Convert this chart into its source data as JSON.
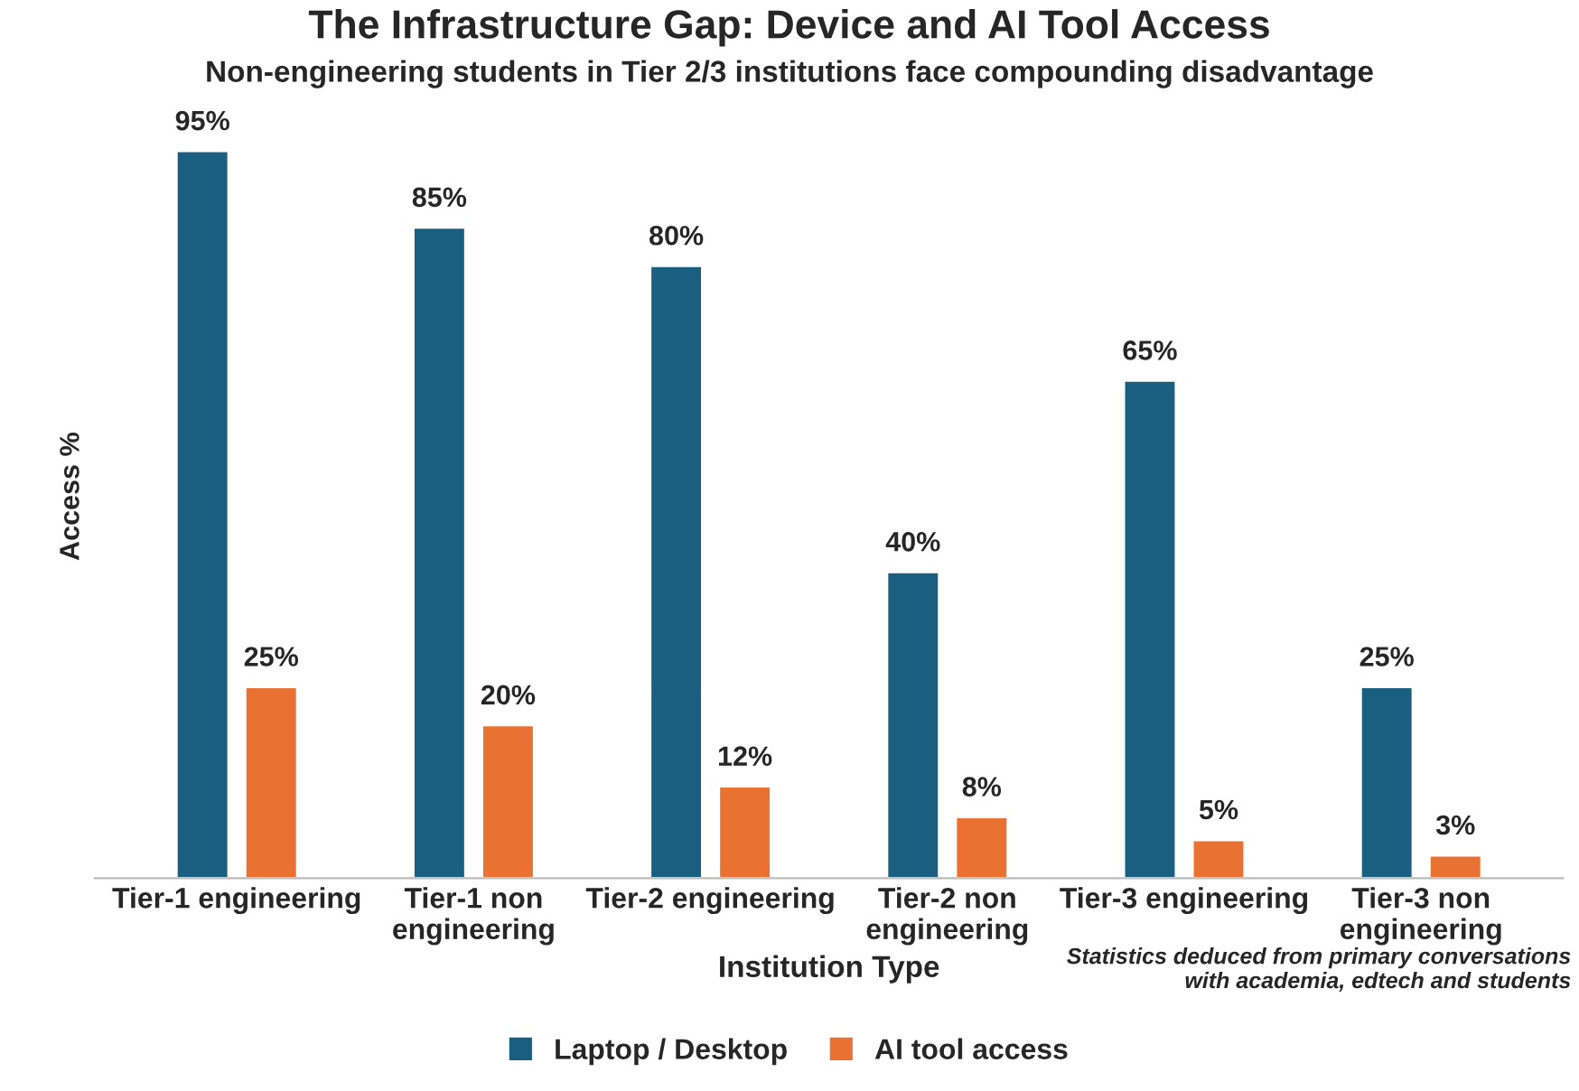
{
  "chart_data": {
    "type": "bar",
    "title": "The Infrastructure Gap: Device and AI Tool Access",
    "subtitle": "Non-engineering students in Tier 2/3 institutions face compounding disadvantage",
    "xlabel": "Institution Type",
    "ylabel": "Access %",
    "categories": [
      "Tier-1 engineering",
      "Tier-1 non\nengineering",
      "Tier-2 engineering",
      "Tier-2 non\nengineering",
      "Tier-3 engineering",
      "Tier-3 non\nengineering"
    ],
    "series": [
      {
        "name": "Laptop / Desktop",
        "color": "#1a5e80",
        "values": [
          95,
          85,
          80,
          40,
          65,
          25
        ],
        "value_labels": [
          "95%",
          "85%",
          "80%",
          "40%",
          "65%",
          "25%"
        ]
      },
      {
        "name": "AI tool access",
        "color": "#e97132",
        "values": [
          25,
          20,
          12,
          8,
          5,
          3
        ],
        "value_labels": [
          "25%",
          "20%",
          "12%",
          "8%",
          "5%",
          "3%"
        ]
      }
    ],
    "annotations": [
      "Statistics deduced from primary conversations\nwith academia, edtech and students"
    ],
    "legend": "bottom",
    "tick_labels": "x",
    "grid": false
  }
}
